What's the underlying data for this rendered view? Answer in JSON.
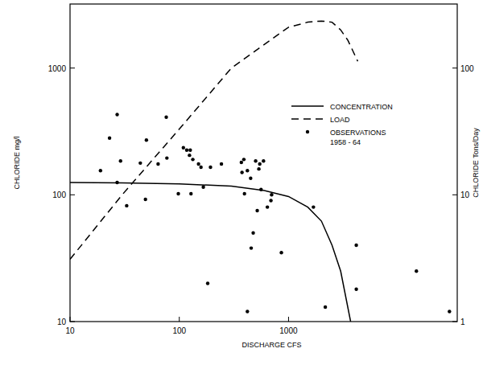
{
  "chart_data": {
    "type": "line",
    "log": true,
    "grid": false,
    "legend": "right",
    "x_label": "DISCHARGE CFS",
    "y_label": "CHLORIDE mg/l",
    "y2_label": "CHLORIDE Tons/Day",
    "xlim": [
      10,
      35000
    ],
    "xticks": [
      10,
      100,
      1000
    ],
    "ylim": [
      10,
      3200
    ],
    "yticks": [
      10,
      100,
      1000
    ],
    "y2lim": [
      1,
      320
    ],
    "y2ticks": [
      1,
      10,
      100
    ],
    "series": [
      {
        "name": "CONCENTRATION",
        "type": "line",
        "line_style": "solid",
        "color": "#000000",
        "x": [
          10,
          30,
          100,
          300,
          600,
          1000,
          1500,
          2000,
          2500,
          3000,
          3700
        ],
        "values": [
          125,
          124,
          122,
          117,
          108,
          97,
          80,
          62,
          40,
          25,
          10
        ]
      },
      {
        "name": "LOAD",
        "type": "line",
        "line_style": "dashed",
        "color": "#000000",
        "axis": "y2",
        "x": [
          10,
          30,
          100,
          300,
          1000,
          1500,
          2000,
          2500,
          3000,
          3500,
          4300
        ],
        "values": [
          3.1,
          10,
          33,
          100,
          210,
          230,
          235,
          230,
          200,
          165,
          113
        ]
      },
      {
        "name": "OBSERVATIONS\n1958 - 64",
        "type": "scatter",
        "marker": "circle",
        "color": "#000000",
        "x": [
          19,
          23,
          27,
          27,
          29,
          33,
          44,
          49,
          50,
          64,
          76,
          77,
          98,
          109,
          117,
          124,
          126,
          128,
          133,
          150,
          158,
          166,
          182,
          193,
          243,
          370,
          375,
          390,
          395,
          420,
          420,
          450,
          455,
          475,
          500,
          517,
          535,
          545,
          560,
          590,
          640,
          690,
          700,
          860,
          1690,
          2170,
          4170,
          4170,
          14800,
          29700
        ],
        "values": [
          155,
          280,
          125,
          430,
          185,
          82,
          178,
          92,
          270,
          175,
          410,
          195,
          102,
          235,
          225,
          205,
          225,
          102,
          190,
          175,
          165,
          115,
          20,
          165,
          175,
          180,
          150,
          190,
          102,
          155,
          12,
          135,
          38,
          50,
          185,
          75,
          160,
          175,
          110,
          185,
          80,
          90,
          100,
          35,
          80,
          13,
          40,
          18,
          25,
          12
        ]
      }
    ]
  }
}
